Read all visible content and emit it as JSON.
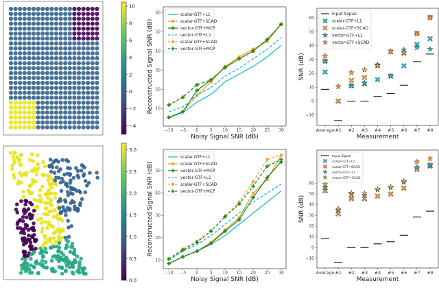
{
  "colors": {
    "cyan": "#17becf",
    "orange": "#ff9f2f",
    "green": "#1a8a1a",
    "input": "#222222",
    "viridis": [
      "#440154",
      "#3b528b",
      "#21918c",
      "#5ec962",
      "#fde725"
    ]
  },
  "chart_data": [
    {
      "id": "grid-signal",
      "type": "heatmap",
      "description_kind": "grid graph signal",
      "colorbar": {
        "ticks": [
          "10",
          "8",
          "6",
          "4",
          "2",
          "0",
          "−2",
          "−4"
        ],
        "range": [
          -5,
          10.5
        ]
      },
      "regions": [
        {
          "name": "background",
          "value": 0
        },
        {
          "name": "top-right block",
          "value": -5
        },
        {
          "name": "bottom-left block",
          "value": 10
        }
      ]
    },
    {
      "id": "grid-snr",
      "type": "line",
      "xlabel": "Noisy Signal SNR (dB)",
      "ylabel": "Reconstructed Signal SNR (dB)",
      "x": [
        -10,
        -5,
        0,
        5,
        10,
        15,
        20,
        25,
        30
      ],
      "xticks": [
        "−10",
        "−5",
        "0",
        "5",
        "10",
        "15",
        "20",
        "25",
        "30"
      ],
      "yticks": [
        "10",
        "20",
        "30",
        "40",
        "50",
        "60"
      ],
      "xlim": [
        -12,
        31.7
      ],
      "ylim": [
        1,
        63
      ],
      "legend": "top-left",
      "series": [
        {
          "name": "scalar-GTF+L1",
          "color": "cyan",
          "dash": false,
          "marker": "none",
          "values": [
            5.5,
            8,
            13.5,
            17.5,
            24,
            28,
            32,
            37,
            43
          ]
        },
        {
          "name": "scalar-GTF+SCAD",
          "color": "orange",
          "dash": false,
          "marker": "circle",
          "values": [
            5.5,
            8.5,
            17,
            24,
            32,
            37,
            41,
            45,
            54
          ]
        },
        {
          "name": "vector-GTF+MCP",
          "color": "green",
          "dash": false,
          "marker": "plus",
          "values": [
            5.5,
            8.5,
            19.5,
            25,
            31.5,
            36,
            40,
            46,
            54
          ]
        },
        {
          "name": "vector-GTF+L1",
          "color": "cyan",
          "dash": true,
          "marker": "none",
          "values": [
            8.5,
            11,
            17,
            21,
            27,
            31,
            36,
            41,
            47
          ]
        },
        {
          "name": "scalar-GTF+SCAD",
          "color": "orange",
          "dash": true,
          "marker": "circle",
          "values": [
            12,
            16,
            22.5,
            25,
            31.5,
            36,
            40,
            46,
            54
          ]
        },
        {
          "name": "vector-GTF+MCP",
          "color": "green",
          "dash": true,
          "marker": "plus",
          "values": [
            12,
            16,
            22.5,
            25,
            31.5,
            36,
            40,
            46,
            54
          ]
        }
      ]
    },
    {
      "id": "grid-measure",
      "type": "scatter",
      "xlabel": "Measurement",
      "ylabel": "SNR (dB)",
      "categories": [
        "Average",
        "#1",
        "#2",
        "#3",
        "#4",
        "#5",
        "#6",
        "#7",
        "#8"
      ],
      "yticks": [
        "−10",
        "0",
        "10",
        "20",
        "30",
        "40",
        "50",
        "60"
      ],
      "ylim": [
        -17.5,
        67
      ],
      "legend": "top-left",
      "series": [
        {
          "name": "Input Signal",
          "marker": "dash",
          "color": "input",
          "values": [
            8.5,
            -14,
            0,
            0,
            3.5,
            5.5,
            11.5,
            28.5,
            34
          ]
        },
        {
          "name": "scalar-GTF+L1",
          "marker": "x",
          "color": "cyan",
          "values": [
            21,
            0,
            11,
            12.5,
            15.5,
            18,
            25.5,
            41,
            45
          ]
        },
        {
          "name": "scalar-GTF+SCAD",
          "marker": "x",
          "color": "orange",
          "values": [
            29,
            0,
            15,
            17,
            25.5,
            35.5,
            34.5,
            49,
            60.5
          ]
        },
        {
          "name": "vector-GTF+L1",
          "marker": "star",
          "color": "cyan",
          "values": [
            28.5,
            10.5,
            11,
            13,
            26,
            18,
            37,
            38.5,
            37.5
          ]
        },
        {
          "name": "vector-GTF+SCAD",
          "marker": "star",
          "color": "orange",
          "values": [
            32.5,
            10.5,
            20.5,
            22.5,
            25.5,
            36,
            35,
            48.5,
            60
          ]
        }
      ]
    },
    {
      "id": "mn-signal",
      "type": "scatter",
      "description_kind": "road network graph signal",
      "colorbar": {
        "ticks": [
          "3.0",
          "2.5",
          "2.0",
          "1.5",
          "1.0",
          "0.5",
          "0.0"
        ],
        "range": [
          0,
          3.15
        ]
      }
    },
    {
      "id": "mn-snr",
      "type": "line",
      "xlabel": "Noisy Signal SNR (dB)",
      "ylabel": "Reconstructed Signal SNR (dB)",
      "x": [
        -10,
        -5,
        0,
        5,
        10,
        15,
        20,
        25,
        30
      ],
      "xticks": [
        "−10",
        "−5",
        "0",
        "5",
        "10",
        "15",
        "20",
        "25",
        "30"
      ],
      "yticks": [
        "10",
        "20",
        "30",
        "40",
        "50"
      ],
      "xlim": [
        -12,
        31.7
      ],
      "ylim": [
        6.2,
        59.5
      ],
      "legend": "top-left",
      "series": [
        {
          "name": "scalar-GTF+L1",
          "color": "cyan",
          "dash": false,
          "marker": "none",
          "values": [
            8.5,
            11.5,
            14,
            17,
            21,
            26,
            31,
            36,
            41
          ]
        },
        {
          "name": "scalar-GTF+SCAD",
          "color": "orange",
          "dash": false,
          "marker": "circle",
          "values": [
            8.5,
            11.5,
            14,
            18,
            23.5,
            29,
            40,
            46,
            57
          ]
        },
        {
          "name": "vector-GTF+MCP",
          "color": "green",
          "dash": false,
          "marker": "plus",
          "values": [
            8.5,
            11.5,
            14,
            17.5,
            23,
            28,
            38,
            47,
            54
          ]
        },
        {
          "name": "vector-GTF+L1",
          "color": "cyan",
          "dash": true,
          "marker": "none",
          "values": [
            10,
            14,
            17,
            21,
            26,
            31,
            36,
            40,
            44
          ]
        },
        {
          "name": "scalar-GTF+SCAD",
          "color": "orange",
          "dash": true,
          "marker": "circle",
          "values": [
            10.5,
            15,
            18.5,
            23,
            29.5,
            36,
            45,
            55,
            57
          ]
        },
        {
          "name": "vector-GTF+MCP",
          "color": "green",
          "dash": true,
          "marker": "plus",
          "values": [
            10.5,
            14.5,
            18,
            23,
            29.5,
            35,
            43,
            52,
            55
          ]
        }
      ]
    },
    {
      "id": "mn-measure",
      "type": "scatter",
      "xlabel": "Measurement",
      "ylabel": "SNR (dB)",
      "categories": [
        "Average",
        "#1",
        "#2",
        "#3",
        "#4",
        "#5",
        "#6",
        "#7",
        "#8"
      ],
      "yticks": [
        "−10",
        "0",
        "10",
        "20",
        "30",
        "40",
        "50",
        "60"
      ],
      "ylim": [
        -19,
        91
      ],
      "legend": "top-left",
      "series": [
        {
          "name": "Input Signal",
          "marker": "dash",
          "color": "input",
          "values": [
            8.5,
            -14,
            0,
            0,
            3.5,
            5.5,
            11.5,
            28.5,
            34
          ]
        },
        {
          "name": "scalar-GTF+L1",
          "marker": "x",
          "color": "cyan",
          "values": [
            53,
            31.5,
            46,
            45.5,
            48,
            50,
            55.5,
            73,
            76
          ]
        },
        {
          "name": "scalar-GTF+SCAD",
          "marker": "x",
          "color": "orange",
          "values": [
            53,
            31.5,
            45.5,
            45.5,
            48,
            50,
            55.5,
            73,
            77
          ]
        },
        {
          "name": "vector-GTF+L1",
          "marker": "star",
          "color": "cyan",
          "values": [
            56,
            35,
            50,
            49,
            54,
            56,
            61,
            75,
            77
          ]
        },
        {
          "name": "vector-GTF+SCAD",
          "marker": "star",
          "color": "orange",
          "values": [
            59,
            36,
            51,
            50.5,
            54.5,
            56.5,
            62,
            80,
            83
          ]
        }
      ]
    }
  ]
}
